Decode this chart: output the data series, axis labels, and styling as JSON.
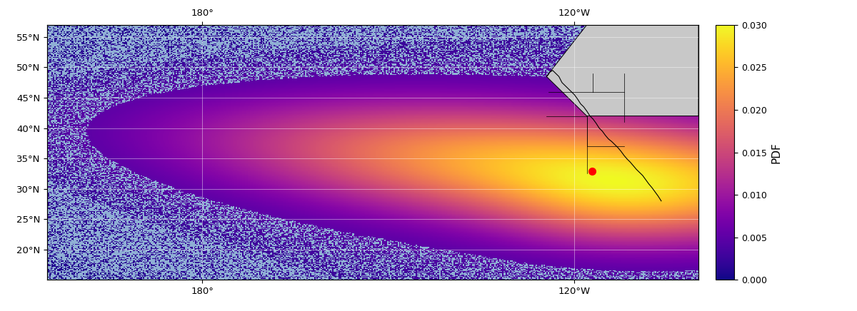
{
  "lon_min": 155,
  "lon_max": 260,
  "lat_min": 15,
  "lat_max": 57,
  "site_lon": 242.88,
  "site_lat": 32.9,
  "site_color": "red",
  "site_markersize": 7,
  "colormap": "plasma",
  "cbar_vmin": 0.0,
  "cbar_vmax": 0.03,
  "cbar_label": "PDF",
  "cbar_ticks": [
    0.0,
    0.005,
    0.01,
    0.015,
    0.02,
    0.025,
    0.03
  ],
  "ocean_color": "#8fafd4",
  "land_color": "#c8c8c8",
  "grid_color": "white",
  "grid_alpha": 0.6,
  "xtick_lons": [
    180,
    240
  ],
  "xtick_labels": [
    "180°",
    "120°W"
  ],
  "ytick_lats": [
    20,
    25,
    30,
    35,
    40,
    45,
    50,
    55
  ],
  "figsize": [
    12.0,
    4.36
  ],
  "dpi": 100
}
